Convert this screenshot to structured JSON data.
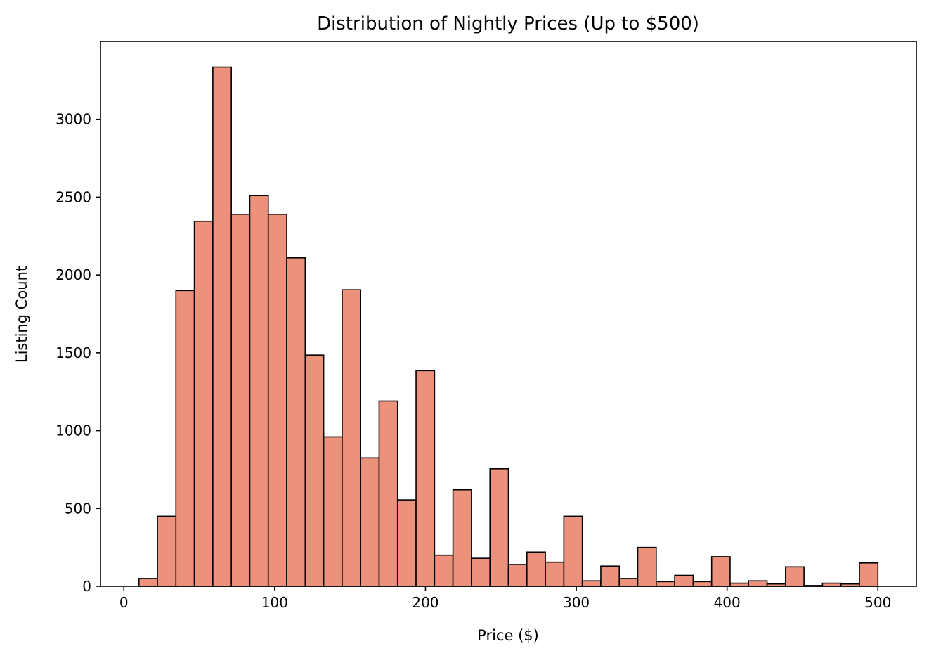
{
  "chart_data": {
    "type": "bar",
    "title": "Distribution of Nightly Prices (Up to $500)",
    "xlabel": "Price ($)",
    "ylabel": "Listing Count",
    "xlim": [
      -15.5,
      525.5
    ],
    "ylim": [
      0,
      3500
    ],
    "xticks": [
      0,
      100,
      200,
      300,
      400,
      500
    ],
    "yticks": [
      0,
      500,
      1000,
      1500,
      2000,
      2500,
      3000
    ],
    "bin_edges": [
      10,
      22.25,
      34.5,
      46.75,
      59,
      71.25,
      83.5,
      95.75,
      108,
      120.25,
      132.5,
      144.75,
      157,
      169.25,
      181.5,
      193.75,
      206,
      218.25,
      230.5,
      242.75,
      255,
      267.25,
      279.5,
      291.75,
      304,
      316.25,
      328.5,
      340.75,
      353,
      365.25,
      377.5,
      389.75,
      402,
      414.25,
      426.5,
      438.75,
      451,
      463.25,
      475.5,
      487.75,
      500
    ],
    "values": [
      50,
      450,
      1900,
      2345,
      3335,
      2390,
      2510,
      2390,
      2110,
      1485,
      960,
      1905,
      825,
      1190,
      555,
      1385,
      200,
      620,
      180,
      755,
      140,
      220,
      155,
      450,
      35,
      130,
      50,
      250,
      30,
      70,
      30,
      190,
      20,
      35,
      15,
      125,
      5,
      20,
      15,
      150
    ],
    "bar_color": "#ec927c",
    "edge_color": "#000000",
    "grid": false,
    "legend": "none"
  }
}
